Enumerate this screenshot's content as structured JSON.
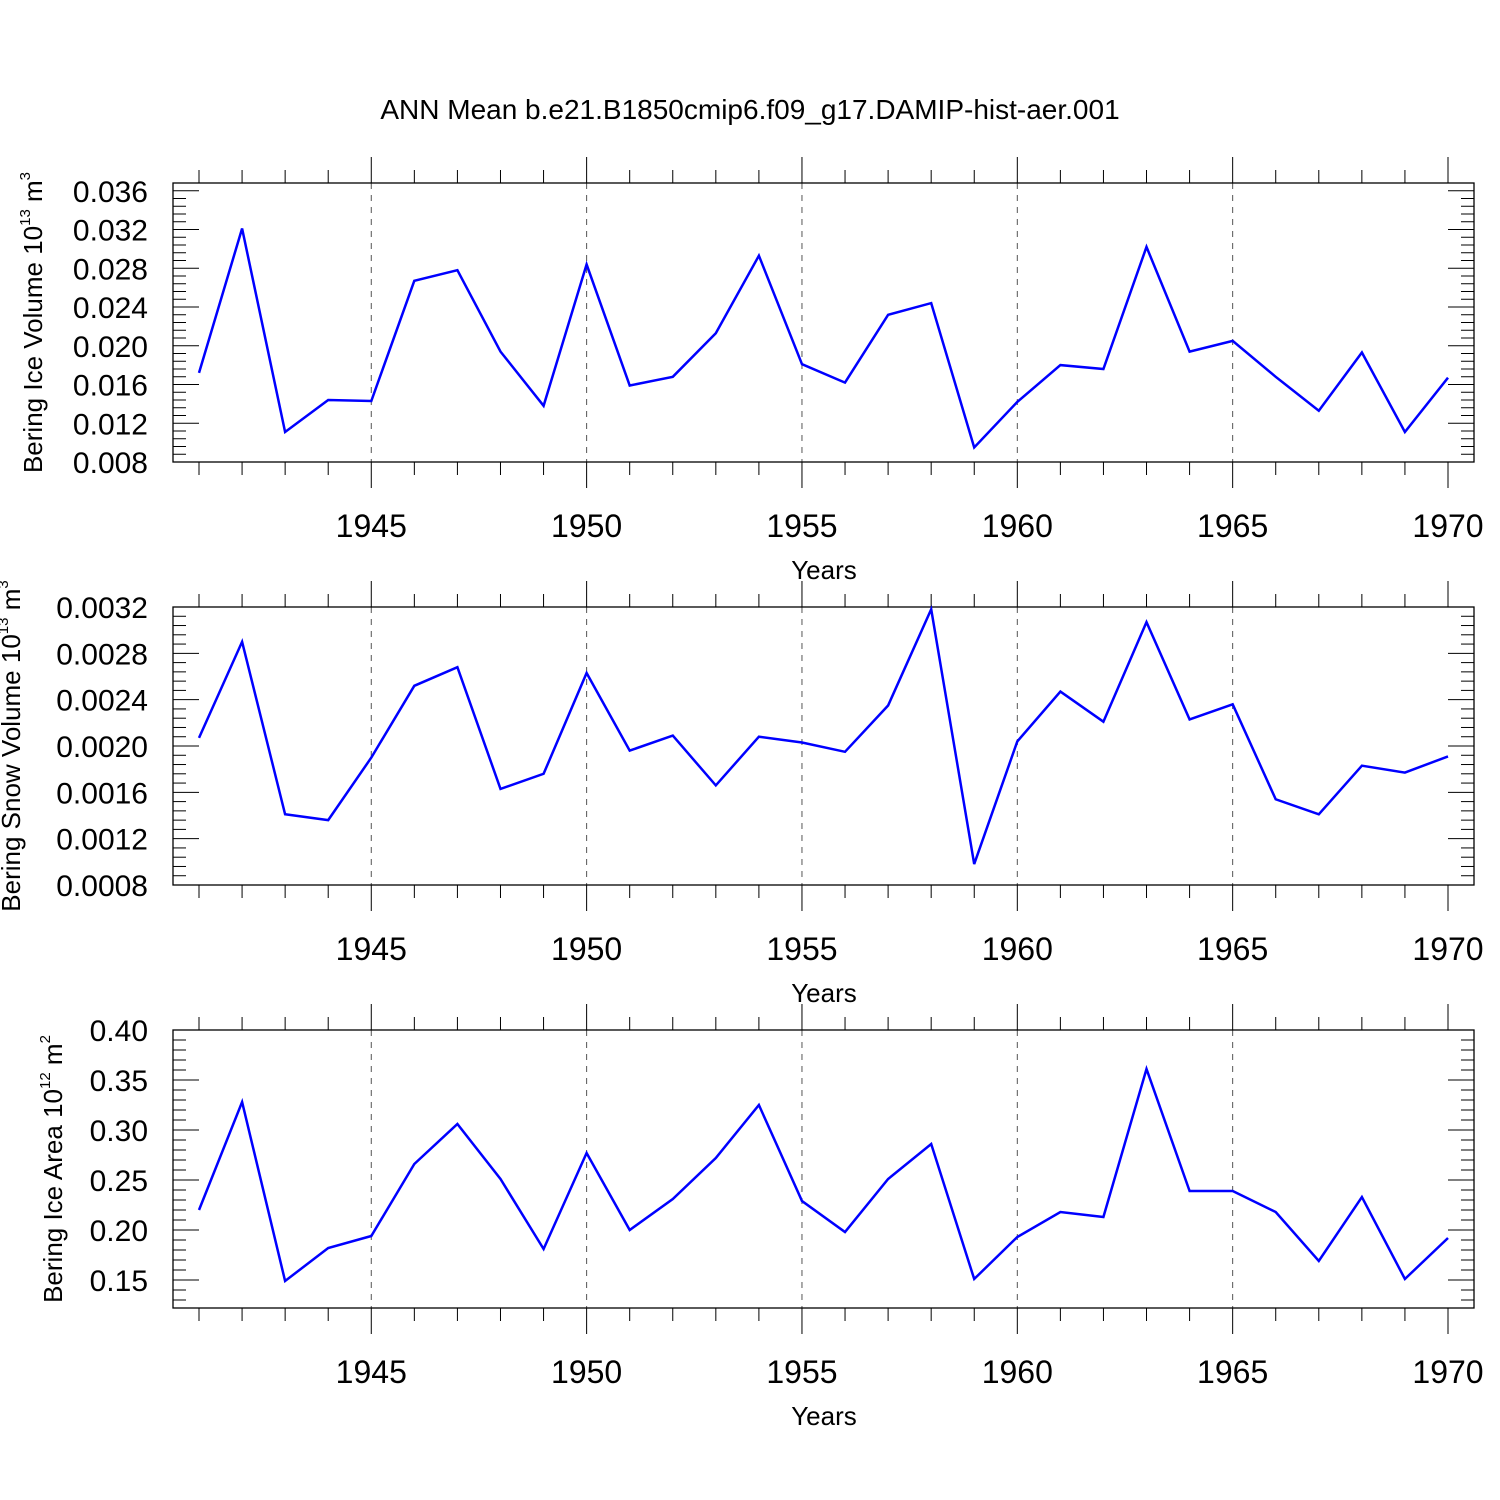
{
  "title": "ANN Mean b.e21.B1850cmip6.f09_g17.DAMIP-hist-aer.001",
  "line_color": "#0000ff",
  "chart_data": [
    {
      "type": "line",
      "ylabel": {
        "text": "Bering Ice Volume 10",
        "exp": "13",
        "unit": " m",
        "unit_exp": "3"
      },
      "xlabel": "Years",
      "xlim": [
        1941,
        1970
      ],
      "ylim": [
        0.008,
        0.0368
      ],
      "y_ticks": [
        "0.008",
        "0.012",
        "0.016",
        "0.020",
        "0.024",
        "0.028",
        "0.032",
        "0.036"
      ],
      "x_ticks": [
        "1945",
        "1950",
        "1955",
        "1960",
        "1965",
        "1970"
      ],
      "grid": "vertical dashed at major x ticks",
      "series": [
        {
          "x": [
            1941,
            1942,
            1943,
            1944,
            1945,
            1946,
            1947,
            1948,
            1949,
            1950,
            1951,
            1952,
            1953,
            1954,
            1955,
            1956,
            1957,
            1958,
            1959,
            1960,
            1961,
            1962,
            1963,
            1964,
            1965,
            1966,
            1967,
            1968,
            1969,
            1970
          ],
          "values": [
            0.0172,
            0.0321,
            0.0111,
            0.0144,
            0.0143,
            0.0267,
            0.0278,
            0.0194,
            0.0138,
            0.0284,
            0.0159,
            0.0168,
            0.0213,
            0.0293,
            0.0181,
            0.0162,
            0.0232,
            0.0244,
            0.0095,
            0.0142,
            0.018,
            0.0176,
            0.0302,
            0.0194,
            0.0205,
            0.0168,
            0.0133,
            0.0193,
            0.0111,
            0.0167
          ]
        }
      ]
    },
    {
      "type": "line",
      "ylabel": {
        "text": "Bering Snow Volume 10",
        "exp": "13",
        "unit": " m",
        "unit_exp": "3"
      },
      "xlabel": "Years",
      "xlim": [
        1941,
        1970
      ],
      "ylim": [
        0.0008,
        0.0032
      ],
      "y_ticks": [
        "0.0008",
        "0.0012",
        "0.0016",
        "0.0020",
        "0.0024",
        "0.0028",
        "0.0032"
      ],
      "x_ticks": [
        "1945",
        "1950",
        "1955",
        "1960",
        "1965",
        "1970"
      ],
      "grid": "vertical dashed at major x ticks",
      "series": [
        {
          "x": [
            1941,
            1942,
            1943,
            1944,
            1945,
            1946,
            1947,
            1948,
            1949,
            1950,
            1951,
            1952,
            1953,
            1954,
            1955,
            1956,
            1957,
            1958,
            1959,
            1960,
            1961,
            1962,
            1963,
            1964,
            1965,
            1966,
            1967,
            1968,
            1969,
            1970
          ],
          "values": [
            0.00207,
            0.0029,
            0.00141,
            0.00136,
            0.0019,
            0.00252,
            0.00268,
            0.00163,
            0.00176,
            0.00263,
            0.00196,
            0.00209,
            0.00166,
            0.00208,
            0.00203,
            0.00195,
            0.00235,
            0.00318,
            0.00098,
            0.00204,
            0.00247,
            0.00221,
            0.00307,
            0.00223,
            0.00236,
            0.00154,
            0.00141,
            0.00183,
            0.00177,
            0.00191
          ]
        }
      ]
    },
    {
      "type": "line",
      "ylabel": {
        "text": "Bering Ice Area 10",
        "exp": "12",
        "unit": " m",
        "unit_exp": "2"
      },
      "xlabel": "Years",
      "xlim": [
        1941,
        1970
      ],
      "ylim": [
        0.122,
        0.4
      ],
      "y_ticks": [
        "0.15",
        "0.20",
        "0.25",
        "0.30",
        "0.35",
        "0.40"
      ],
      "x_ticks": [
        "1945",
        "1950",
        "1955",
        "1960",
        "1965",
        "1970"
      ],
      "grid": "vertical dashed at major x ticks",
      "series": [
        {
          "x": [
            1941,
            1942,
            1943,
            1944,
            1945,
            1946,
            1947,
            1948,
            1949,
            1950,
            1951,
            1952,
            1953,
            1954,
            1955,
            1956,
            1957,
            1958,
            1959,
            1960,
            1961,
            1962,
            1963,
            1964,
            1965,
            1966,
            1967,
            1968,
            1969,
            1970
          ],
          "values": [
            0.22,
            0.328,
            0.149,
            0.182,
            0.194,
            0.266,
            0.306,
            0.251,
            0.181,
            0.277,
            0.2,
            0.231,
            0.272,
            0.325,
            0.229,
            0.198,
            0.251,
            0.286,
            0.151,
            0.193,
            0.218,
            0.213,
            0.361,
            0.239,
            0.239,
            0.218,
            0.169,
            0.233,
            0.151,
            0.192
          ]
        }
      ]
    }
  ]
}
